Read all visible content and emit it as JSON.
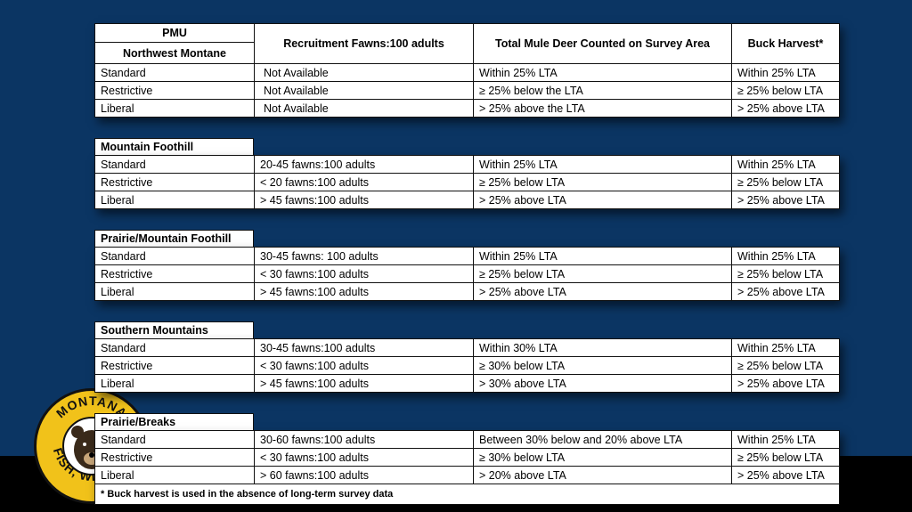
{
  "header": {
    "pmu": "PMU",
    "recruitment": "Recruitment Fawns:100 adults",
    "total": "Total Mule Deer Counted on Survey Area",
    "buck": "Buck Harvest*"
  },
  "regions": [
    {
      "name": "Northwest Montane",
      "rows": [
        [
          "Standard",
          "Not Available",
          "Within 25% LTA",
          "Within 25% LTA"
        ],
        [
          "Restrictive",
          "Not Available",
          "≥ 25% below the LTA",
          "≥ 25% below LTA"
        ],
        [
          "Liberal",
          "Not Available",
          "> 25% above the LTA",
          "> 25% above LTA"
        ]
      ]
    },
    {
      "name": "Mountain Foothill",
      "rows": [
        [
          "Standard",
          "20-45 fawns:100 adults",
          "Within 25% LTA",
          "Within 25% LTA"
        ],
        [
          "Restrictive",
          "< 20 fawns:100 adults",
          "≥ 25% below LTA",
          "≥ 25% below LTA"
        ],
        [
          "Liberal",
          "> 45 fawns:100 adults",
          "> 25% above LTA",
          "> 25% above LTA"
        ]
      ]
    },
    {
      "name": "Prairie/Mountain Foothill",
      "rows": [
        [
          "Standard",
          "30-45 fawns: 100 adults",
          "Within 25% LTA",
          "Within 25% LTA"
        ],
        [
          "Restrictive",
          "< 30 fawns:100 adults",
          "≥ 25% below LTA",
          "≥ 25% below LTA"
        ],
        [
          "Liberal",
          "> 45 fawns:100 adults",
          "> 25% above LTA",
          "> 25% above LTA"
        ]
      ]
    },
    {
      "name": "Southern Mountains",
      "rows": [
        [
          "Standard",
          "30-45 fawns:100 adults",
          "Within 30% LTA",
          "Within 25% LTA"
        ],
        [
          "Restrictive",
          "< 30 fawns:100 adults",
          "≥ 30% below LTA",
          "≥ 25% below LTA"
        ],
        [
          "Liberal",
          "> 45 fawns:100 adults",
          "> 30% above LTA",
          "> 25% above LTA"
        ]
      ]
    },
    {
      "name": "Prairie/Breaks",
      "rows": [
        [
          "Standard",
          "30-60 fawns:100 adults",
          "Between 30% below and 20% above LTA",
          "Within 25% LTA"
        ],
        [
          "Restrictive",
          "< 30 fawns:100 adults",
          "≥ 30% below LTA",
          "≥ 25% below LTA"
        ],
        [
          "Liberal",
          "> 60 fawns:100 adults",
          "> 20% above LTA",
          "> 25% above LTA"
        ]
      ]
    }
  ],
  "footnote": "* Buck harvest is used in the absence of long-term survey data",
  "logo": {
    "top_text": "MONTANA",
    "bottom_text": "FISH, WILDLIFE",
    "icon": "bear-head-icon"
  },
  "colors": {
    "background": "#0b3563",
    "logo_gold": "#f1c21a"
  }
}
